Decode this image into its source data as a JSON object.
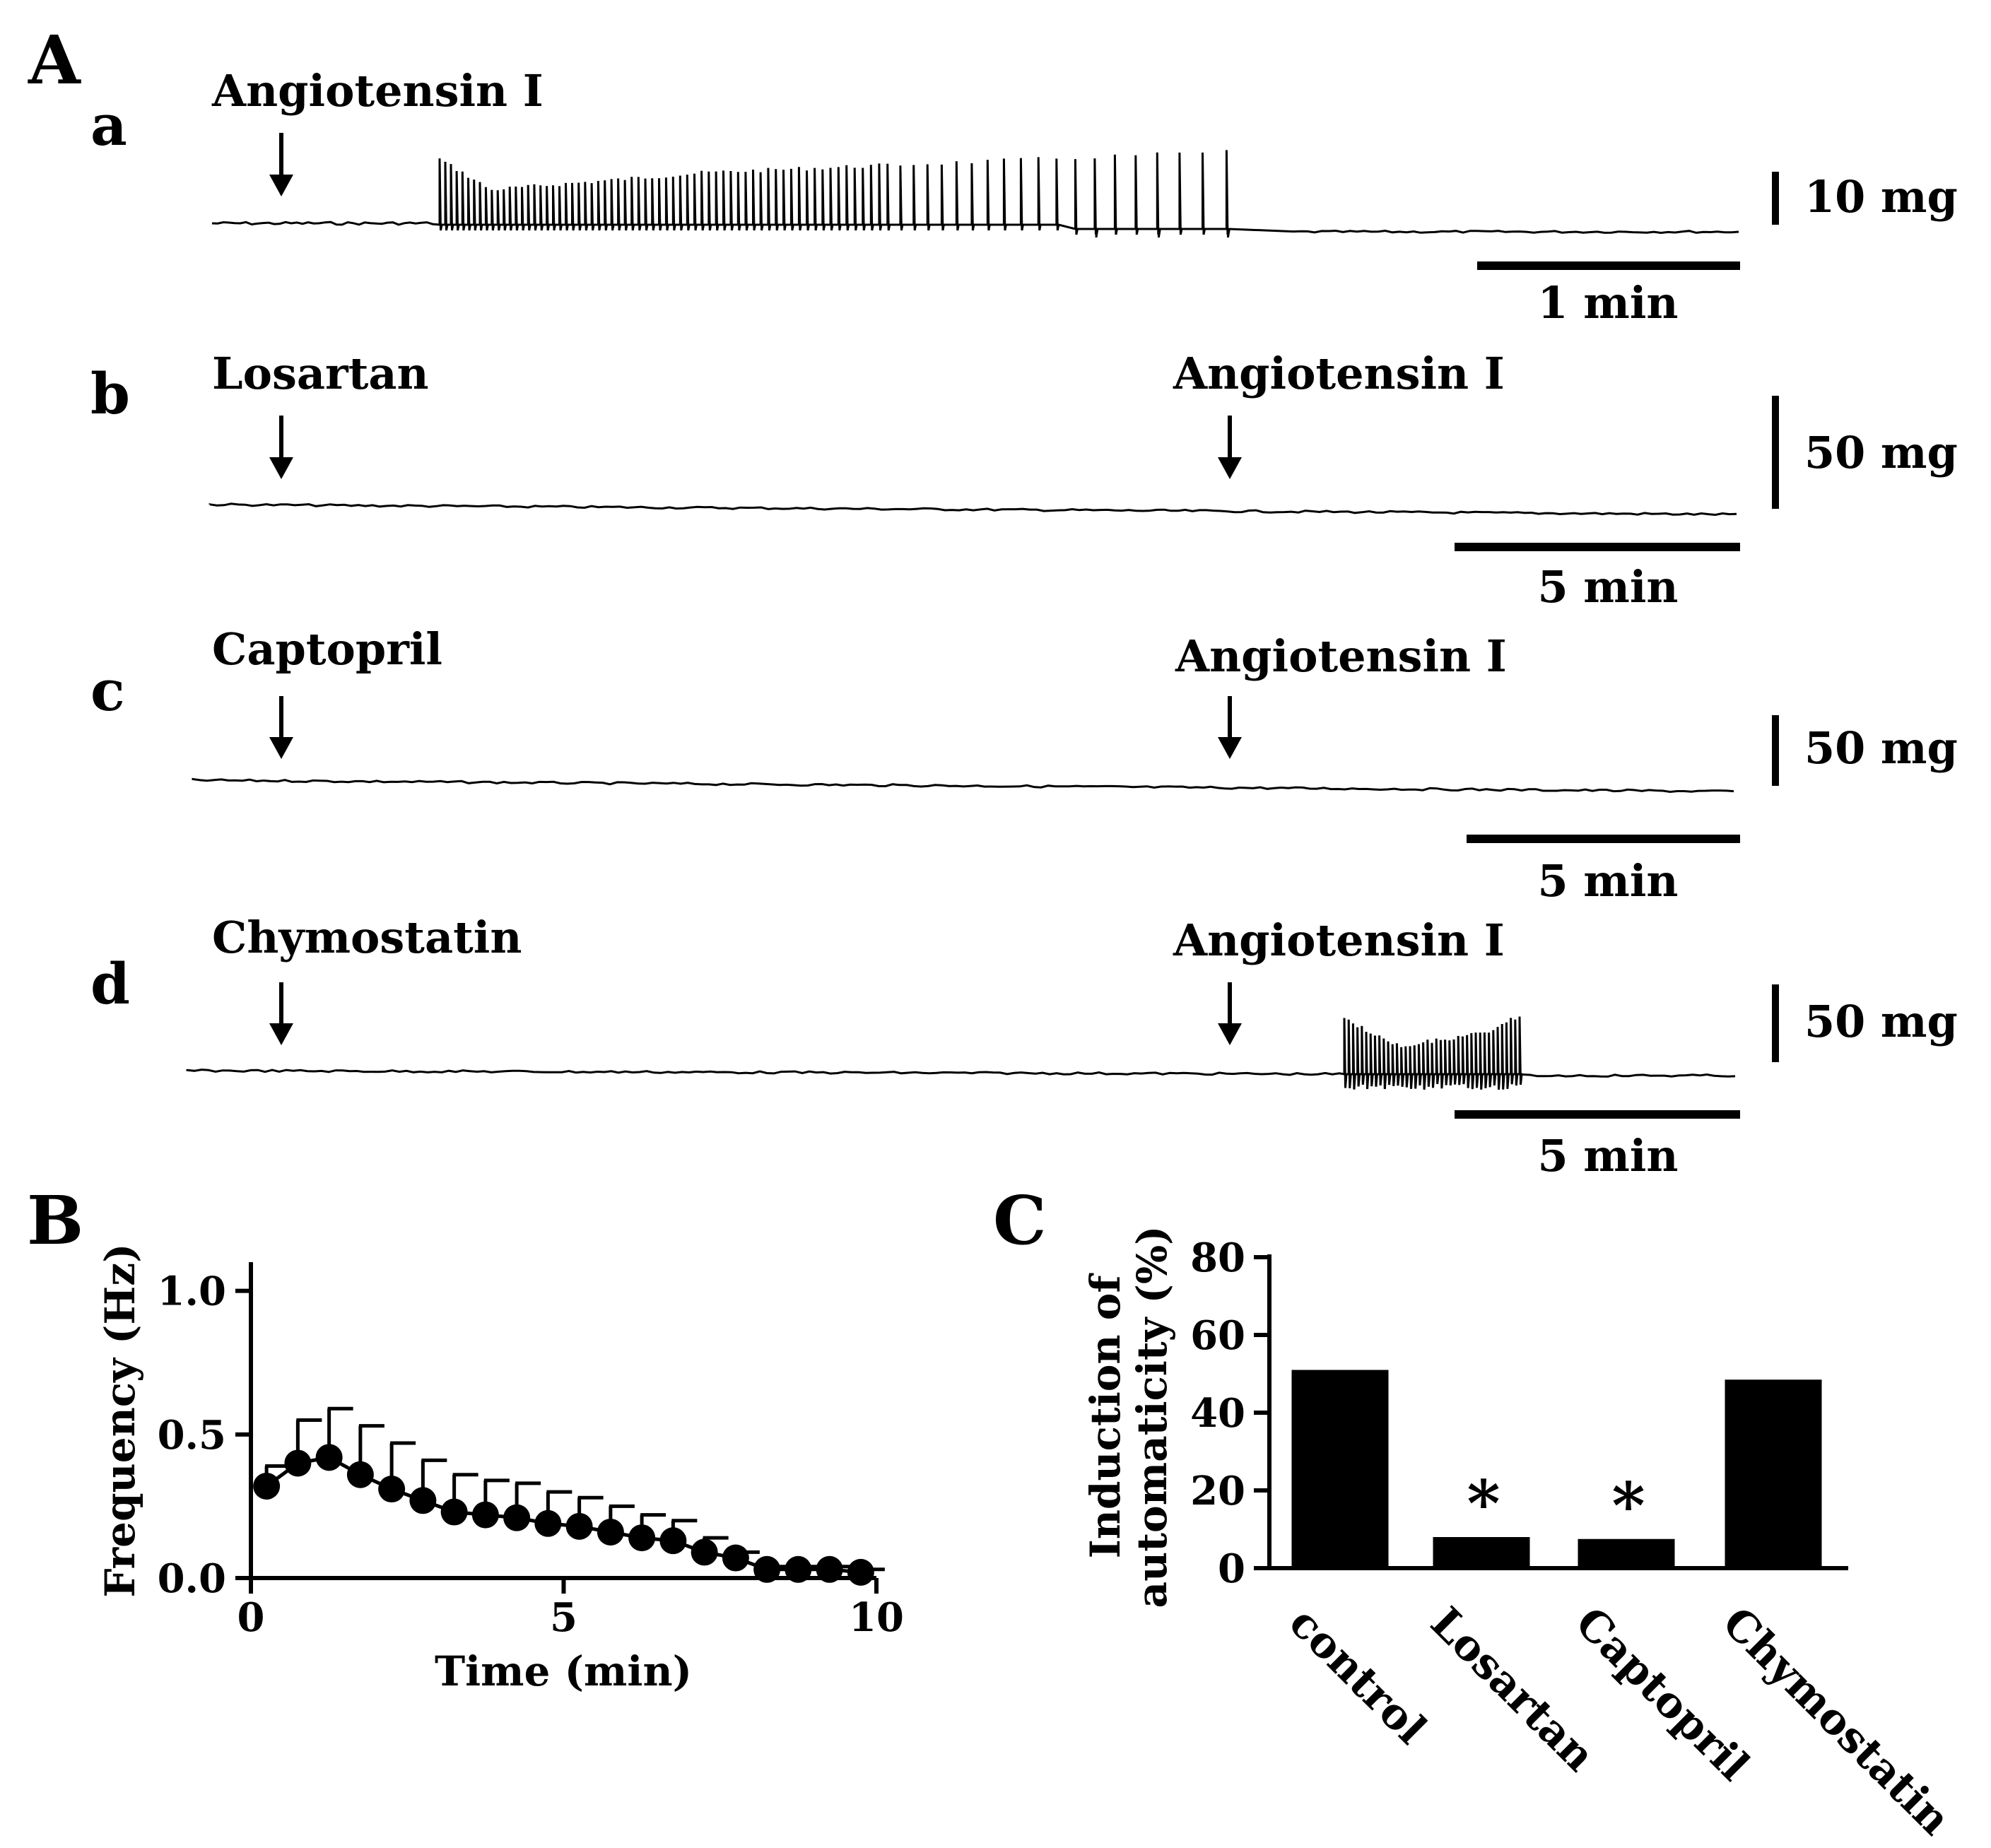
{
  "panels": {
    "A": "A",
    "B": "B",
    "C": "C"
  },
  "traces": [
    {
      "id": "a",
      "label": "a",
      "drug": "Angiotensin I",
      "second_drug": "",
      "scale_y": "10 mg",
      "scale_x": "1 min",
      "response": "sustained"
    },
    {
      "id": "b",
      "label": "b",
      "drug": "Losartan",
      "second_drug": "Angiotensin I",
      "scale_y": "50 mg",
      "scale_x": "5 min",
      "response": "none"
    },
    {
      "id": "c",
      "label": "c",
      "drug": "Captopril",
      "second_drug": "Angiotensin I",
      "scale_y": "50 mg",
      "scale_x": "5 min",
      "response": "none"
    },
    {
      "id": "d",
      "label": "d",
      "drug": "Chymostatin",
      "second_drug": "Angiotensin I",
      "scale_y": "50 mg",
      "scale_x": "5 min",
      "response": "burst"
    }
  ],
  "chart_data": [
    {
      "type": "scatter",
      "panel": "B",
      "xlabel": "Time (min)",
      "ylabel": "Frequency (Hz)",
      "xlim": [
        0,
        10
      ],
      "ylim": [
        0,
        1.1
      ],
      "xticks": [
        "0",
        "5",
        "10"
      ],
      "yticks": [
        "0.0",
        "0.5",
        "1.0"
      ],
      "x": [
        0.25,
        0.75,
        1.25,
        1.75,
        2.25,
        2.75,
        3.25,
        3.75,
        4.25,
        4.75,
        5.25,
        5.75,
        6.25,
        6.75,
        7.25,
        7.75,
        8.25,
        8.75,
        9.25,
        9.75
      ],
      "y": [
        0.32,
        0.4,
        0.42,
        0.36,
        0.31,
        0.27,
        0.23,
        0.22,
        0.21,
        0.19,
        0.18,
        0.16,
        0.14,
        0.13,
        0.09,
        0.07,
        0.03,
        0.03,
        0.03,
        0.02
      ],
      "err": [
        0.07,
        0.15,
        0.17,
        0.17,
        0.16,
        0.14,
        0.13,
        0.12,
        0.12,
        0.11,
        0.1,
        0.09,
        0.08,
        0.07,
        0.05,
        0.02,
        0.01,
        0.01,
        0.01,
        0.01
      ]
    },
    {
      "type": "bar",
      "panel": "C",
      "ylabel_line1": "Induction of",
      "ylabel_line2": "automaticity (%)",
      "ylim": [
        0,
        80
      ],
      "yticks": [
        "0",
        "20",
        "40",
        "60",
        "80"
      ],
      "categories": [
        "control",
        "Losartan",
        "Captopril",
        "Chymostatin"
      ],
      "values": [
        51,
        8,
        7.5,
        48.5
      ],
      "annotations": [
        "",
        "*",
        "*",
        ""
      ]
    }
  ]
}
